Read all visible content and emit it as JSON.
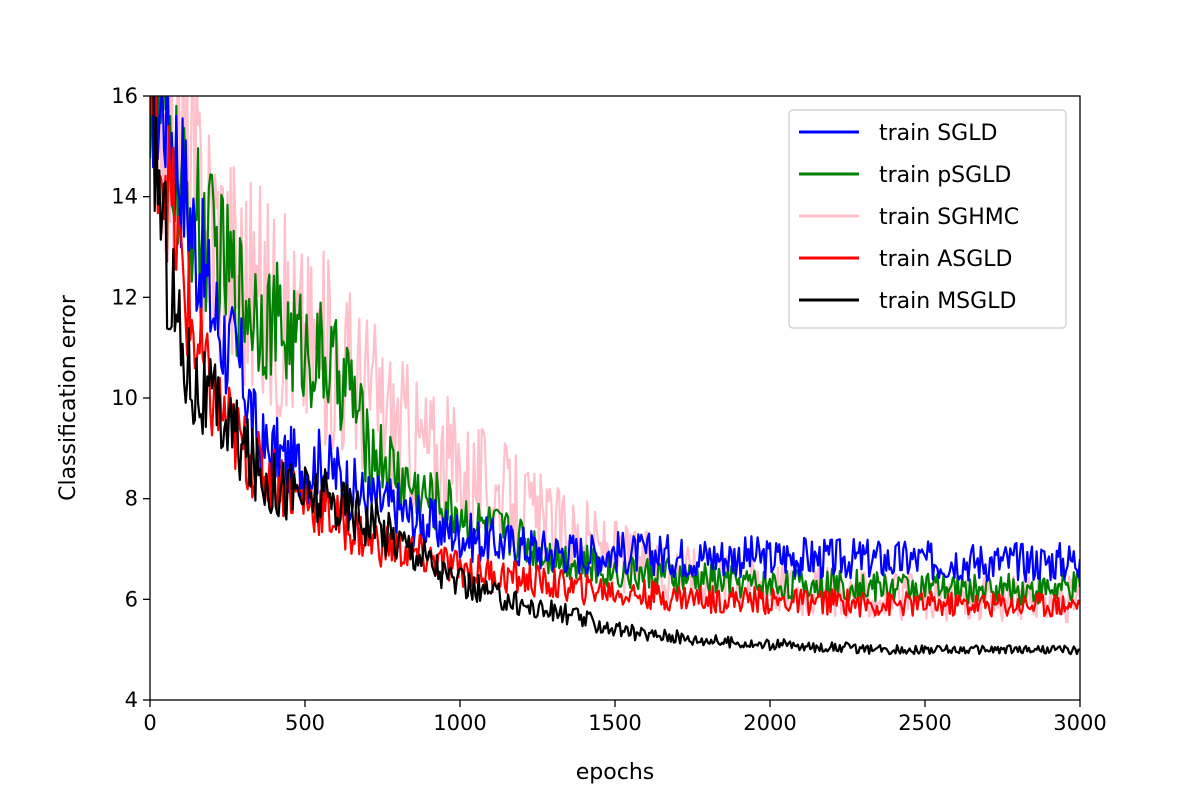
{
  "chart_data": {
    "type": "line",
    "xlabel": "epochs",
    "ylabel": "Classification error",
    "xlim": [
      0,
      3000
    ],
    "ylim": [
      4,
      16
    ],
    "xticks": [
      "0",
      "500",
      "1000",
      "1500",
      "2000",
      "2500",
      "3000"
    ],
    "yticks": [
      "4",
      "6",
      "8",
      "10",
      "12",
      "14",
      "16"
    ],
    "grid": false,
    "legend_position": "top-right",
    "x_note": "series values are sampled every 50 epochs, x = 0, 50, ..., 3000",
    "series": [
      {
        "name": "train SGLD",
        "color": "#0000ff",
        "x": [
          0,
          50,
          100,
          150,
          200,
          250,
          300,
          350,
          400,
          450,
          500,
          550,
          600,
          650,
          700,
          750,
          800,
          850,
          900,
          950,
          1000,
          1050,
          1100,
          1150,
          1200,
          1250,
          1300,
          1350,
          1400,
          1450,
          1500,
          1550,
          1600,
          1650,
          1700,
          1750,
          1800,
          1850,
          1900,
          1950,
          2000,
          2050,
          2100,
          2150,
          2200,
          2250,
          2300,
          2350,
          2400,
          2450,
          2500,
          2550,
          2600,
          2650,
          2700,
          2750,
          2800,
          2850,
          2900,
          2950,
          3000
        ],
        "values": [
          16.0,
          15.8,
          14.5,
          13.0,
          11.8,
          11.0,
          10.5,
          9.0,
          8.9,
          8.7,
          8.6,
          8.7,
          8.5,
          8.2,
          8.0,
          7.9,
          7.8,
          7.6,
          7.5,
          7.4,
          7.3,
          7.2,
          7.15,
          7.1,
          7.05,
          7.0,
          6.95,
          6.95,
          6.9,
          6.9,
          6.95,
          6.9,
          6.9,
          6.9,
          6.85,
          6.85,
          6.85,
          6.85,
          6.85,
          6.85,
          6.8,
          6.85,
          6.85,
          6.8,
          6.8,
          6.8,
          6.8,
          6.8,
          6.75,
          6.8,
          6.75,
          6.75,
          6.8,
          6.75,
          6.75,
          6.75,
          6.75,
          6.75,
          6.75,
          6.75,
          6.8
        ]
      },
      {
        "name": "train pSGLD",
        "color": "#008000",
        "x": [
          0,
          50,
          100,
          150,
          200,
          250,
          300,
          350,
          400,
          450,
          500,
          550,
          600,
          650,
          700,
          750,
          800,
          850,
          900,
          950,
          1000,
          1050,
          1100,
          1150,
          1200,
          1250,
          1300,
          1350,
          1400,
          1450,
          1500,
          1550,
          1600,
          1650,
          1700,
          1750,
          1800,
          1850,
          1900,
          1950,
          2000,
          2050,
          2100,
          2150,
          2200,
          2250,
          2300,
          2350,
          2400,
          2450,
          2500,
          2550,
          2600,
          2650,
          2700,
          2750,
          2800,
          2850,
          2900,
          2950,
          3000
        ],
        "values": [
          16.0,
          15.5,
          14.0,
          13.5,
          13.0,
          12.5,
          12.0,
          11.8,
          11.5,
          11.2,
          11.0,
          10.8,
          10.5,
          10.2,
          9.0,
          8.8,
          8.5,
          8.2,
          8.0,
          7.9,
          7.7,
          7.5,
          7.4,
          7.3,
          7.2,
          7.0,
          6.9,
          6.8,
          6.7,
          6.6,
          6.6,
          6.5,
          6.5,
          6.5,
          6.4,
          6.4,
          6.4,
          6.35,
          6.35,
          6.3,
          6.3,
          6.3,
          6.3,
          6.3,
          6.3,
          6.3,
          6.25,
          6.25,
          6.25,
          6.25,
          6.25,
          6.2,
          6.2,
          6.2,
          6.2,
          6.2,
          6.2,
          6.2,
          6.2,
          6.2,
          6.25
        ]
      },
      {
        "name": "train SGHMC",
        "color": "#ffc0cb",
        "x": [
          0,
          50,
          100,
          150,
          200,
          250,
          300,
          350,
          400,
          450,
          500,
          550,
          600,
          650,
          700,
          750,
          800,
          850,
          900,
          950,
          1000,
          1050,
          1100,
          1150,
          1200,
          1250,
          1300,
          1350,
          1400,
          1450,
          1500,
          1550,
          1600,
          1650,
          1700,
          1750,
          1800,
          1850,
          1900,
          1950,
          2000,
          2050,
          2100,
          2150,
          2200,
          2250,
          2300,
          2350,
          2400,
          2450,
          2500,
          2550,
          2600,
          2650,
          2700,
          2750,
          2800,
          2850,
          2900,
          2950,
          3000
        ],
        "values": [
          16.0,
          15.5,
          15.0,
          14.0,
          13.5,
          13.0,
          12.5,
          12.0,
          11.8,
          11.5,
          11.2,
          11.0,
          10.8,
          10.5,
          10.2,
          9.8,
          9.5,
          9.2,
          9.0,
          8.8,
          8.6,
          8.4,
          8.2,
          8.0,
          7.8,
          7.6,
          7.4,
          7.3,
          7.2,
          7.0,
          6.9,
          6.8,
          6.7,
          6.6,
          6.6,
          6.5,
          6.5,
          6.4,
          6.4,
          6.35,
          6.3,
          6.3,
          6.2,
          6.2,
          6.15,
          6.1,
          6.1,
          6.05,
          6.05,
          6.05,
          6.0,
          6.0,
          6.0,
          6.0,
          6.0,
          6.0,
          6.0,
          6.0,
          6.0,
          6.0,
          6.0
        ]
      },
      {
        "name": "train ASGLD",
        "color": "#ff0000",
        "x": [
          0,
          50,
          100,
          150,
          200,
          250,
          300,
          350,
          400,
          450,
          500,
          550,
          600,
          650,
          700,
          750,
          800,
          850,
          900,
          950,
          1000,
          1050,
          1100,
          1150,
          1200,
          1250,
          1300,
          1350,
          1400,
          1450,
          1500,
          1550,
          1600,
          1650,
          1700,
          1750,
          1800,
          1850,
          1900,
          1950,
          2000,
          2050,
          2100,
          2150,
          2200,
          2250,
          2300,
          2350,
          2400,
          2450,
          2500,
          2550,
          2600,
          2650,
          2700,
          2750,
          2800,
          2850,
          2900,
          2950,
          3000
        ],
        "values": [
          16.0,
          14.5,
          12.5,
          11.0,
          10.0,
          9.5,
          9.0,
          8.6,
          8.4,
          8.2,
          8.0,
          7.8,
          7.6,
          7.4,
          7.2,
          7.1,
          7.0,
          6.9,
          6.8,
          6.7,
          6.6,
          6.55,
          6.5,
          6.45,
          6.4,
          6.35,
          6.3,
          6.25,
          6.2,
          6.2,
          6.15,
          6.1,
          6.1,
          6.05,
          6.05,
          6.05,
          6.0,
          6.0,
          6.0,
          6.0,
          5.95,
          5.95,
          5.95,
          5.95,
          5.95,
          5.95,
          5.9,
          5.9,
          5.9,
          5.9,
          5.9,
          5.9,
          5.9,
          5.9,
          5.9,
          5.9,
          5.9,
          5.9,
          5.9,
          5.9,
          5.9
        ]
      },
      {
        "name": "train MSGLD",
        "color": "#000000",
        "x": [
          0,
          50,
          100,
          150,
          200,
          250,
          300,
          350,
          400,
          450,
          500,
          550,
          600,
          650,
          700,
          750,
          800,
          850,
          900,
          950,
          1000,
          1050,
          1100,
          1150,
          1200,
          1250,
          1300,
          1350,
          1400,
          1450,
          1500,
          1550,
          1600,
          1650,
          1700,
          1750,
          1800,
          1850,
          1900,
          1950,
          2000,
          2050,
          2100,
          2150,
          2200,
          2250,
          2300,
          2350,
          2400,
          2450,
          2500,
          2550,
          2600,
          2650,
          2700,
          2750,
          2800,
          2850,
          2900,
          2950,
          3000
        ],
        "values": [
          16.0,
          13.0,
          11.0,
          10.2,
          9.8,
          9.5,
          9.0,
          8.5,
          8.3,
          8.2,
          8.1,
          8.0,
          7.9,
          7.8,
          7.6,
          7.4,
          7.2,
          7.0,
          6.8,
          6.5,
          6.3,
          6.2,
          6.1,
          6.0,
          5.9,
          5.8,
          5.75,
          5.7,
          5.6,
          5.5,
          5.4,
          5.35,
          5.3,
          5.3,
          5.25,
          5.2,
          5.2,
          5.15,
          5.15,
          5.1,
          5.1,
          5.1,
          5.05,
          5.05,
          5.05,
          5.05,
          5.0,
          5.0,
          5.0,
          5.0,
          5.0,
          5.0,
          5.0,
          5.0,
          5.0,
          5.0,
          5.0,
          5.0,
          5.0,
          5.0,
          5.0
        ]
      }
    ]
  }
}
